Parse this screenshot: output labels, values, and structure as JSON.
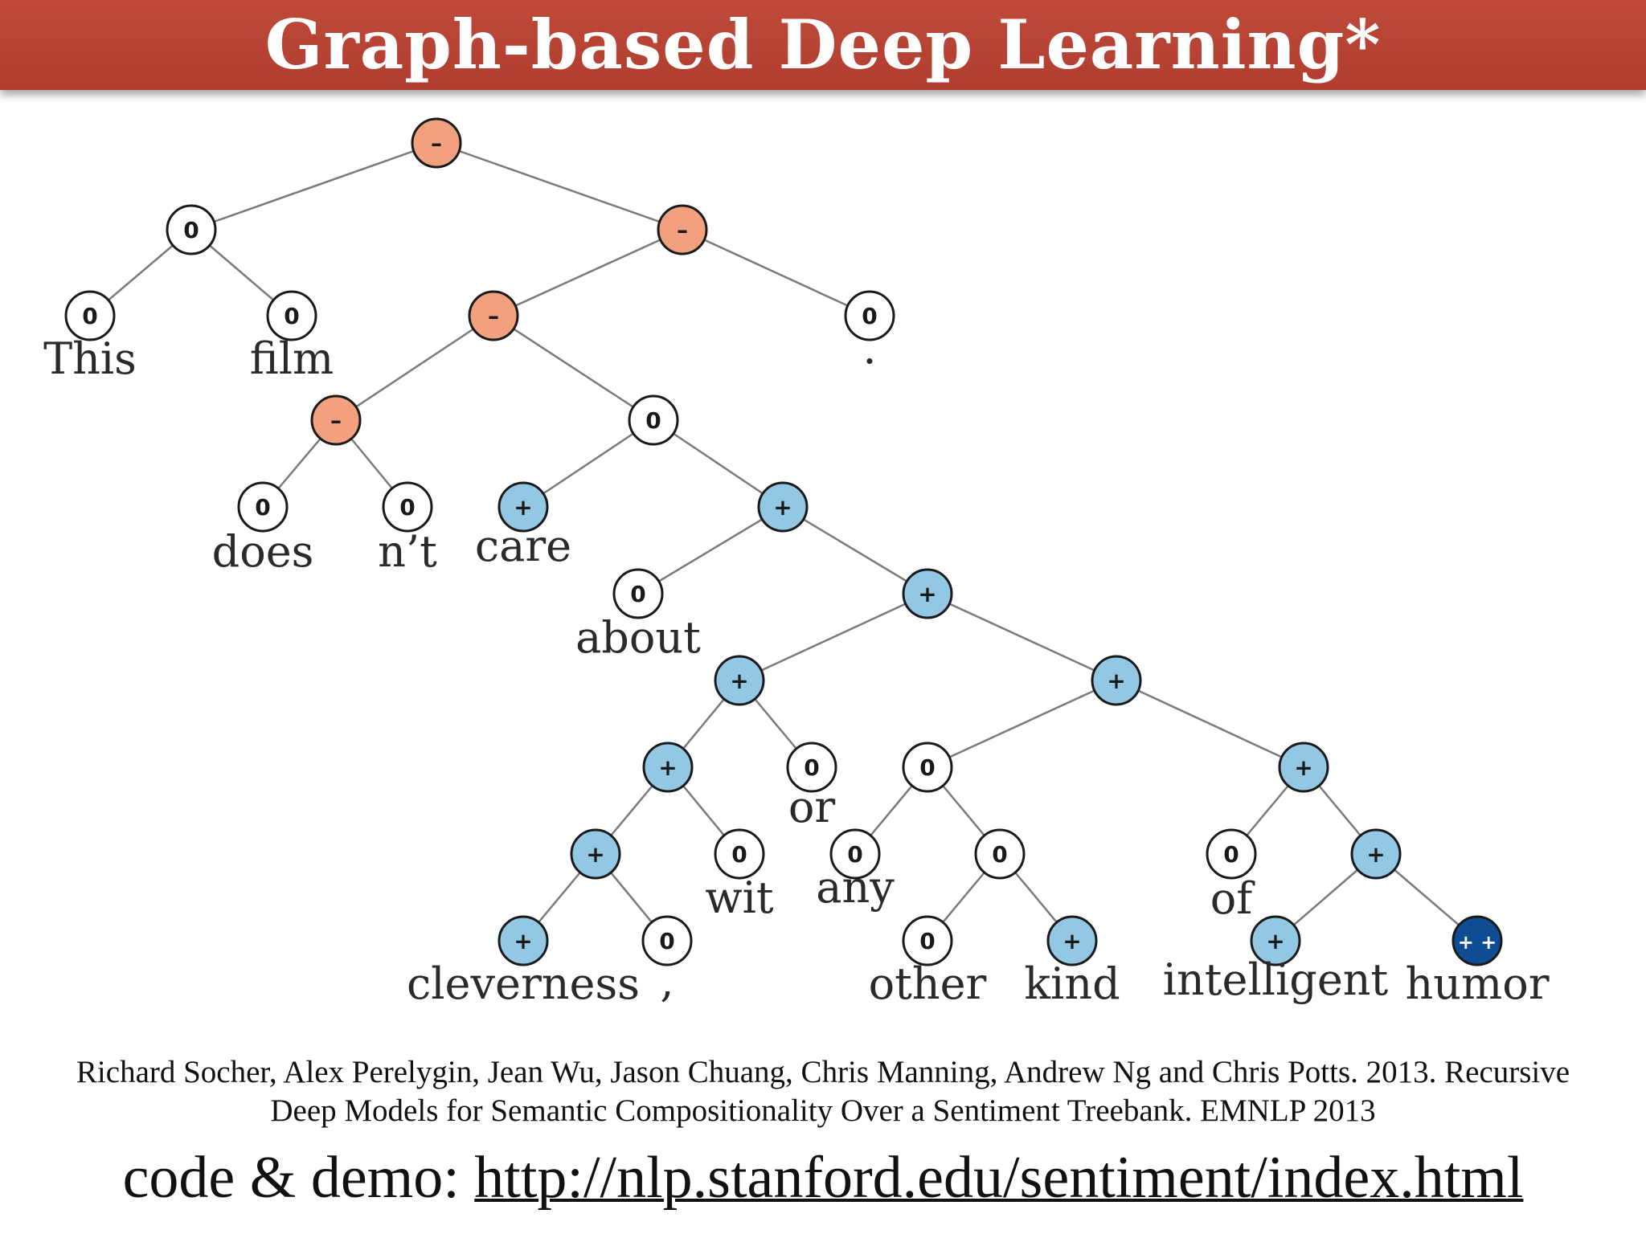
{
  "title": "Graph-based Deep Learning*",
  "colors": {
    "header": "#b5402f",
    "negative": "#f2a07e",
    "neutral": "#ffffff",
    "positive": "#93c8e4",
    "very_positive": "#0e4d94"
  },
  "tree": {
    "nodes": [
      {
        "id": "root",
        "label": "–",
        "sentiment": "negative"
      },
      {
        "id": "this_film",
        "label": "0",
        "sentiment": "neutral"
      },
      {
        "id": "this",
        "label": "0",
        "sentiment": "neutral"
      },
      {
        "id": "film",
        "label": "0",
        "sentiment": "neutral"
      },
      {
        "id": "vp_period",
        "label": "–",
        "sentiment": "negative"
      },
      {
        "id": "vp",
        "label": "–",
        "sentiment": "negative"
      },
      {
        "id": "period",
        "label": "0",
        "sentiment": "neutral"
      },
      {
        "id": "doesnt",
        "label": "–",
        "sentiment": "negative"
      },
      {
        "id": "does",
        "label": "0",
        "sentiment": "neutral"
      },
      {
        "id": "nt",
        "label": "0",
        "sentiment": "neutral"
      },
      {
        "id": "care_about",
        "label": "0",
        "sentiment": "neutral"
      },
      {
        "id": "care",
        "label": "+",
        "sentiment": "positive"
      },
      {
        "id": "about_pp",
        "label": "+",
        "sentiment": "positive"
      },
      {
        "id": "about",
        "label": "0",
        "sentiment": "neutral"
      },
      {
        "id": "np_big",
        "label": "+",
        "sentiment": "positive"
      },
      {
        "id": "clev_wit",
        "label": "+",
        "sentiment": "positive"
      },
      {
        "id": "clev_wit_inner",
        "label": "+",
        "sentiment": "positive"
      },
      {
        "id": "clev_comma",
        "label": "+",
        "sentiment": "positive"
      },
      {
        "id": "cleverness",
        "label": "+",
        "sentiment": "positive"
      },
      {
        "id": "comma",
        "label": "0",
        "sentiment": "neutral"
      },
      {
        "id": "wit",
        "label": "0",
        "sentiment": "neutral"
      },
      {
        "id": "or",
        "label": "0",
        "sentiment": "neutral"
      },
      {
        "id": "or_any",
        "label": "+",
        "sentiment": "positive"
      },
      {
        "id": "any_other_kind",
        "label": "0",
        "sentiment": "neutral"
      },
      {
        "id": "any",
        "label": "0",
        "sentiment": "neutral"
      },
      {
        "id": "other_kind",
        "label": "0",
        "sentiment": "neutral"
      },
      {
        "id": "other",
        "label": "0",
        "sentiment": "neutral"
      },
      {
        "id": "kind",
        "label": "+",
        "sentiment": "positive"
      },
      {
        "id": "of_pp",
        "label": "+",
        "sentiment": "positive"
      },
      {
        "id": "of",
        "label": "0",
        "sentiment": "neutral"
      },
      {
        "id": "intel_humor",
        "label": "+",
        "sentiment": "positive"
      },
      {
        "id": "intelligent",
        "label": "+",
        "sentiment": "positive"
      },
      {
        "id": "humor",
        "label": "+ +",
        "sentiment": "very_positive"
      }
    ],
    "words": [
      {
        "node": "this",
        "text": "This"
      },
      {
        "node": "film",
        "text": "film"
      },
      {
        "node": "period",
        "text": "."
      },
      {
        "node": "does",
        "text": "does"
      },
      {
        "node": "nt",
        "text": "n’t"
      },
      {
        "node": "care",
        "text": "care"
      },
      {
        "node": "about",
        "text": "about"
      },
      {
        "node": "cleverness",
        "text": "cleverness"
      },
      {
        "node": "comma",
        "text": ","
      },
      {
        "node": "wit",
        "text": "wit"
      },
      {
        "node": "or",
        "text": "or"
      },
      {
        "node": "any",
        "text": "any"
      },
      {
        "node": "other",
        "text": "other"
      },
      {
        "node": "kind",
        "text": "kind"
      },
      {
        "node": "of",
        "text": "of"
      },
      {
        "node": "intelligent",
        "text": "intelligent"
      },
      {
        "node": "humor",
        "text": "humor"
      }
    ],
    "edges": [
      [
        "root",
        "this_film"
      ],
      [
        "root",
        "vp_period"
      ],
      [
        "this_film",
        "this"
      ],
      [
        "this_film",
        "film"
      ],
      [
        "vp_period",
        "vp"
      ],
      [
        "vp_period",
        "period"
      ],
      [
        "vp",
        "doesnt"
      ],
      [
        "vp",
        "care_about"
      ],
      [
        "doesnt",
        "does"
      ],
      [
        "doesnt",
        "nt"
      ],
      [
        "care_about",
        "care"
      ],
      [
        "care_about",
        "about_pp"
      ],
      [
        "about_pp",
        "about"
      ],
      [
        "about_pp",
        "np_big"
      ],
      [
        "np_big",
        "clev_wit"
      ],
      [
        "np_big",
        "or_any"
      ],
      [
        "clev_wit",
        "clev_wit_inner"
      ],
      [
        "clev_wit",
        "or"
      ],
      [
        "clev_wit_inner",
        "clev_comma"
      ],
      [
        "clev_wit_inner",
        "wit"
      ],
      [
        "clev_comma",
        "cleverness"
      ],
      [
        "clev_comma",
        "comma"
      ],
      [
        "or_any",
        "any_other_kind"
      ],
      [
        "or_any",
        "of_pp"
      ],
      [
        "any_other_kind",
        "any"
      ],
      [
        "any_other_kind",
        "other_kind"
      ],
      [
        "other_kind",
        "other"
      ],
      [
        "other_kind",
        "kind"
      ],
      [
        "of_pp",
        "of"
      ],
      [
        "of_pp",
        "intel_humor"
      ],
      [
        "intel_humor",
        "intelligent"
      ],
      [
        "intel_humor",
        "humor"
      ]
    ]
  },
  "citation": {
    "line1": "Richard Socher, Alex Perelygin, Jean Wu, Jason Chuang, Chris Manning, Andrew Ng and Chris Potts. 2013. Recursive",
    "line2": "Deep Models for Semantic Compositionality Over a Sentiment Treebank. EMNLP  2013"
  },
  "demo": {
    "prefix": "code & demo: ",
    "link": "http://nlp.stanford.edu/sentiment/index.html"
  }
}
